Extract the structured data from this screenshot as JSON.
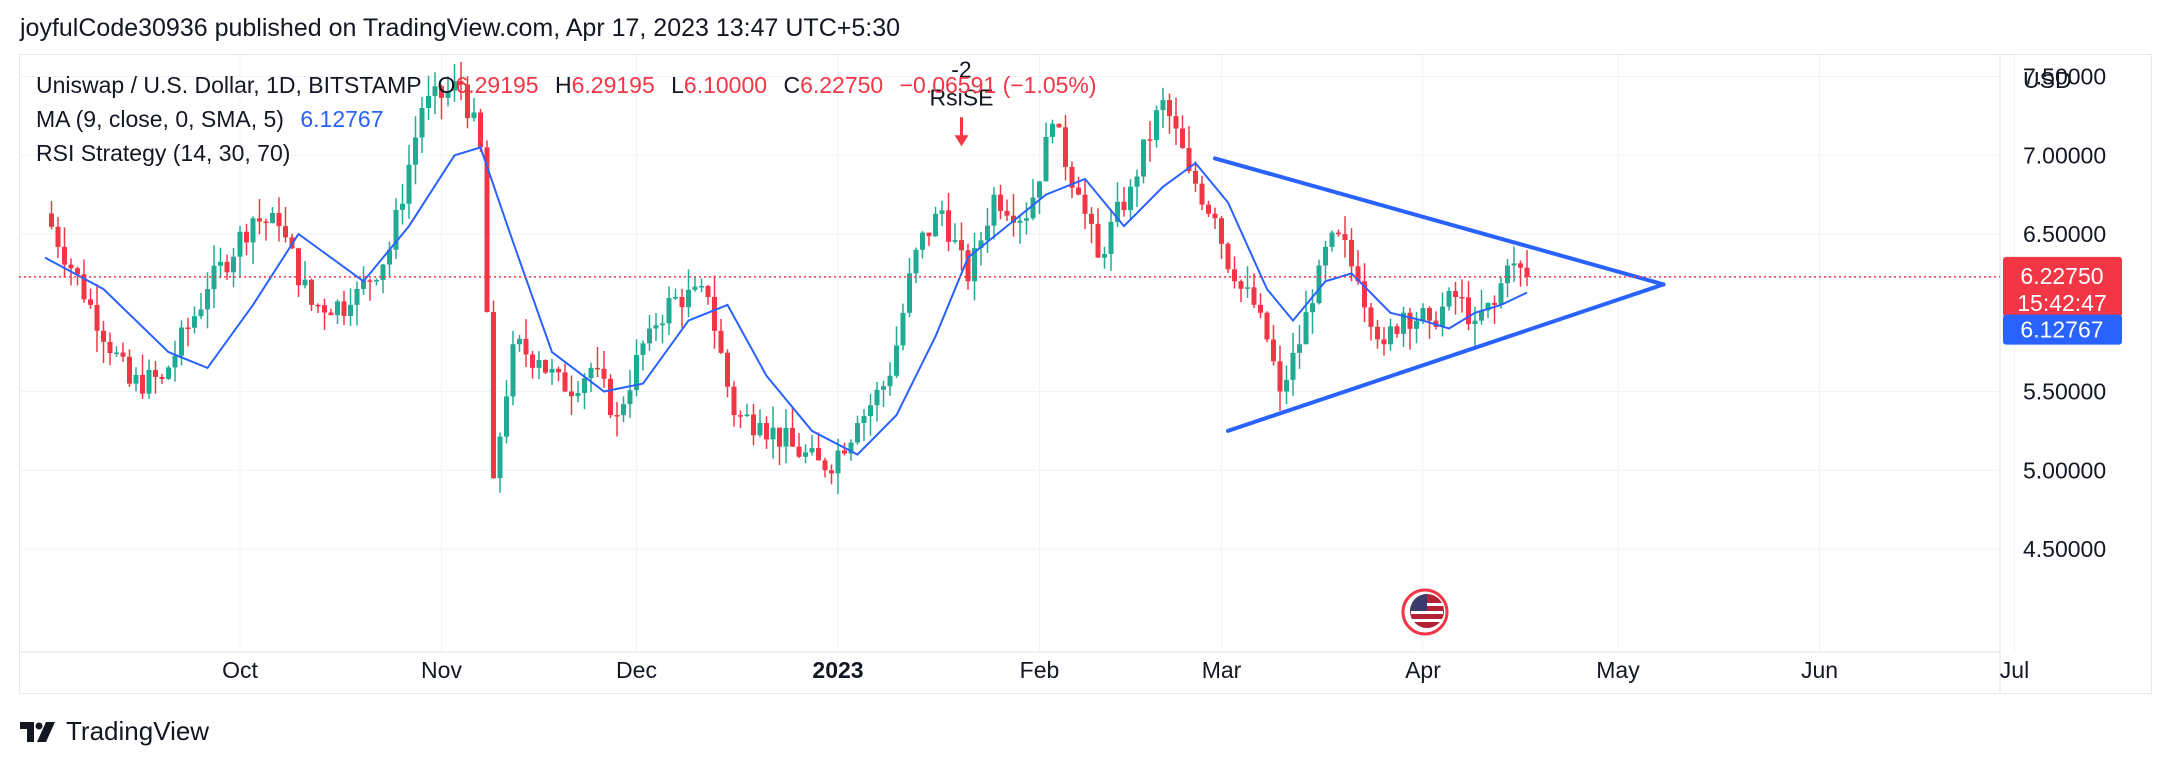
{
  "header": {
    "published": "joyfulCode30936 published on TradingView.com, Apr 17, 2023 13:47 UTC+5:30"
  },
  "legend": {
    "symbol": "Uniswap / U.S. Dollar, 1D, BITSTAMP",
    "o_label": "O",
    "o_value": "6.29195",
    "h_label": "H",
    "h_value": "6.29195",
    "l_label": "L",
    "l_value": "6.10000",
    "c_label": "C",
    "c_value": "6.22750",
    "change": "−0.06591 (−1.05%)",
    "ma_label": "MA (9, close, 0, SMA, 5)",
    "ma_value": "6.12767",
    "rsi_label": "RSI Strategy (14, 30, 70)"
  },
  "footer": {
    "brand": "TradingView"
  },
  "colors": {
    "up": "#22ab94",
    "down": "#f23645",
    "ma": "#2962ff",
    "grid": "#f0f3fa",
    "text": "#131722"
  },
  "chart_data": {
    "type": "candlestick",
    "symbol": "Uniswap / U.S. Dollar",
    "interval": "1D",
    "exchange": "BITSTAMP",
    "currency": "USD",
    "y_ticks": [
      "4.50000",
      "5.00000",
      "5.50000",
      "6.50000",
      "7.00000",
      "7.50000"
    ],
    "ylim": [
      4.3,
      7.95
    ],
    "x_ticks": [
      {
        "label": "Oct",
        "date": "2022-10-01"
      },
      {
        "label": "Nov",
        "date": "2022-11-01"
      },
      {
        "label": "Dec",
        "date": "2022-12-01"
      },
      {
        "label": "2023",
        "date": "2023-01-01",
        "bold": true
      },
      {
        "label": "Feb",
        "date": "2023-02-01"
      },
      {
        "label": "Mar",
        "date": "2023-03-01"
      },
      {
        "label": "Apr",
        "date": "2023-04-01"
      },
      {
        "label": "May",
        "date": "2023-05-01"
      },
      {
        "label": "Jun",
        "date": "2023-06-01"
      },
      {
        "label": "Jul",
        "date": "2023-07-01"
      }
    ],
    "last_price": {
      "value": 6.2275,
      "label": "6.22750",
      "countdown": "15:42:47"
    },
    "ma_last": {
      "value": 6.12767,
      "label": "6.12767"
    },
    "closes": [
      {
        "date": "2022-09-01",
        "close": 6.63
      },
      {
        "date": "2022-09-08",
        "close": 6.05
      },
      {
        "date": "2022-09-14",
        "close": 5.55
      },
      {
        "date": "2022-09-19",
        "close": 5.58
      },
      {
        "date": "2022-09-26",
        "close": 6.15
      },
      {
        "date": "2022-10-03",
        "close": 6.6
      },
      {
        "date": "2022-10-07",
        "close": 6.55
      },
      {
        "date": "2022-10-12",
        "close": 6.05
      },
      {
        "date": "2022-10-18",
        "close": 6.05
      },
      {
        "date": "2022-10-24",
        "close": 6.4
      },
      {
        "date": "2022-10-29",
        "close": 7.3
      },
      {
        "date": "2022-11-04",
        "close": 7.45
      },
      {
        "date": "2022-11-07",
        "close": 7.05
      },
      {
        "date": "2022-11-09",
        "close": 4.95
      },
      {
        "date": "2022-11-12",
        "close": 5.8
      },
      {
        "date": "2022-11-16",
        "close": 5.7
      },
      {
        "date": "2022-11-20",
        "close": 5.5
      },
      {
        "date": "2022-11-24",
        "close": 5.65
      },
      {
        "date": "2022-11-28",
        "close": 5.35
      },
      {
        "date": "2022-12-03",
        "close": 5.9
      },
      {
        "date": "2022-12-07",
        "close": 6.1
      },
      {
        "date": "2022-12-12",
        "close": 6.1
      },
      {
        "date": "2022-12-16",
        "close": 5.35
      },
      {
        "date": "2022-12-20",
        "close": 5.3
      },
      {
        "date": "2022-12-25",
        "close": 5.15
      },
      {
        "date": "2022-12-30",
        "close": 5.0
      },
      {
        "date": "2023-01-04",
        "close": 5.3
      },
      {
        "date": "2023-01-09",
        "close": 5.6
      },
      {
        "date": "2023-01-13",
        "close": 6.4
      },
      {
        "date": "2023-01-17",
        "close": 6.65
      },
      {
        "date": "2023-01-21",
        "close": 6.2
      },
      {
        "date": "2023-01-25",
        "close": 6.75
      },
      {
        "date": "2023-01-30",
        "close": 6.6
      },
      {
        "date": "2023-02-03",
        "close": 7.2
      },
      {
        "date": "2023-02-07",
        "close": 6.75
      },
      {
        "date": "2023-02-10",
        "close": 6.35
      },
      {
        "date": "2023-02-15",
        "close": 6.8
      },
      {
        "date": "2023-02-20",
        "close": 7.35
      },
      {
        "date": "2023-02-24",
        "close": 6.9
      },
      {
        "date": "2023-02-28",
        "close": 6.6
      },
      {
        "date": "2023-03-03",
        "close": 6.2
      },
      {
        "date": "2023-03-07",
        "close": 6.0
      },
      {
        "date": "2023-03-10",
        "close": 5.5
      },
      {
        "date": "2023-03-13",
        "close": 5.8
      },
      {
        "date": "2023-03-16",
        "close": 6.3
      },
      {
        "date": "2023-03-19",
        "close": 6.5
      },
      {
        "date": "2023-03-22",
        "close": 6.2
      },
      {
        "date": "2023-03-26",
        "close": 5.8
      },
      {
        "date": "2023-03-29",
        "close": 6.0
      },
      {
        "date": "2023-04-02",
        "close": 5.95
      },
      {
        "date": "2023-04-06",
        "close": 6.1
      },
      {
        "date": "2023-04-09",
        "close": 5.95
      },
      {
        "date": "2023-04-12",
        "close": 6.05
      },
      {
        "date": "2023-04-14",
        "close": 6.3
      },
      {
        "date": "2023-04-17",
        "close": 6.2275
      }
    ],
    "ma": [
      {
        "date": "2022-09-01",
        "value": 6.35
      },
      {
        "date": "2022-09-10",
        "value": 6.15
      },
      {
        "date": "2022-09-20",
        "value": 5.75
      },
      {
        "date": "2022-09-26",
        "value": 5.65
      },
      {
        "date": "2022-10-03",
        "value": 6.05
      },
      {
        "date": "2022-10-10",
        "value": 6.5
      },
      {
        "date": "2022-10-20",
        "value": 6.2
      },
      {
        "date": "2022-10-27",
        "value": 6.55
      },
      {
        "date": "2022-11-03",
        "value": 7.0
      },
      {
        "date": "2022-11-07",
        "value": 7.05
      },
      {
        "date": "2022-11-12",
        "value": 6.45
      },
      {
        "date": "2022-11-18",
        "value": 5.75
      },
      {
        "date": "2022-11-26",
        "value": 5.5
      },
      {
        "date": "2022-12-02",
        "value": 5.55
      },
      {
        "date": "2022-12-09",
        "value": 5.95
      },
      {
        "date": "2022-12-15",
        "value": 6.05
      },
      {
        "date": "2022-12-21",
        "value": 5.6
      },
      {
        "date": "2022-12-28",
        "value": 5.25
      },
      {
        "date": "2023-01-04",
        "value": 5.1
      },
      {
        "date": "2023-01-10",
        "value": 5.35
      },
      {
        "date": "2023-01-16",
        "value": 5.85
      },
      {
        "date": "2023-01-21",
        "value": 6.35
      },
      {
        "date": "2023-01-27",
        "value": 6.55
      },
      {
        "date": "2023-02-02",
        "value": 6.75
      },
      {
        "date": "2023-02-08",
        "value": 6.85
      },
      {
        "date": "2023-02-14",
        "value": 6.55
      },
      {
        "date": "2023-02-20",
        "value": 6.8
      },
      {
        "date": "2023-02-25",
        "value": 6.95
      },
      {
        "date": "2023-03-02",
        "value": 6.7
      },
      {
        "date": "2023-03-08",
        "value": 6.15
      },
      {
        "date": "2023-03-12",
        "value": 5.95
      },
      {
        "date": "2023-03-17",
        "value": 6.2
      },
      {
        "date": "2023-03-21",
        "value": 6.25
      },
      {
        "date": "2023-03-27",
        "value": 6.0
      },
      {
        "date": "2023-04-01",
        "value": 5.95
      },
      {
        "date": "2023-04-05",
        "value": 5.9
      },
      {
        "date": "2023-04-09",
        "value": 6.0
      },
      {
        "date": "2023-04-13",
        "value": 6.05
      },
      {
        "date": "2023-04-17",
        "value": 6.12767
      }
    ],
    "trendlines": [
      {
        "name": "triangle-upper",
        "from": {
          "date": "2023-02-28",
          "value": 6.98
        },
        "to": {
          "date": "2023-05-08",
          "value": 6.18
        }
      },
      {
        "name": "triangle-lower",
        "from": {
          "date": "2023-03-02",
          "value": 5.25
        },
        "to": {
          "date": "2023-05-08",
          "value": 6.18
        }
      }
    ],
    "signal": {
      "date": "2023-01-20",
      "value": 7.0,
      "text_line1": "-2",
      "text_line2": "RsiSE"
    }
  }
}
